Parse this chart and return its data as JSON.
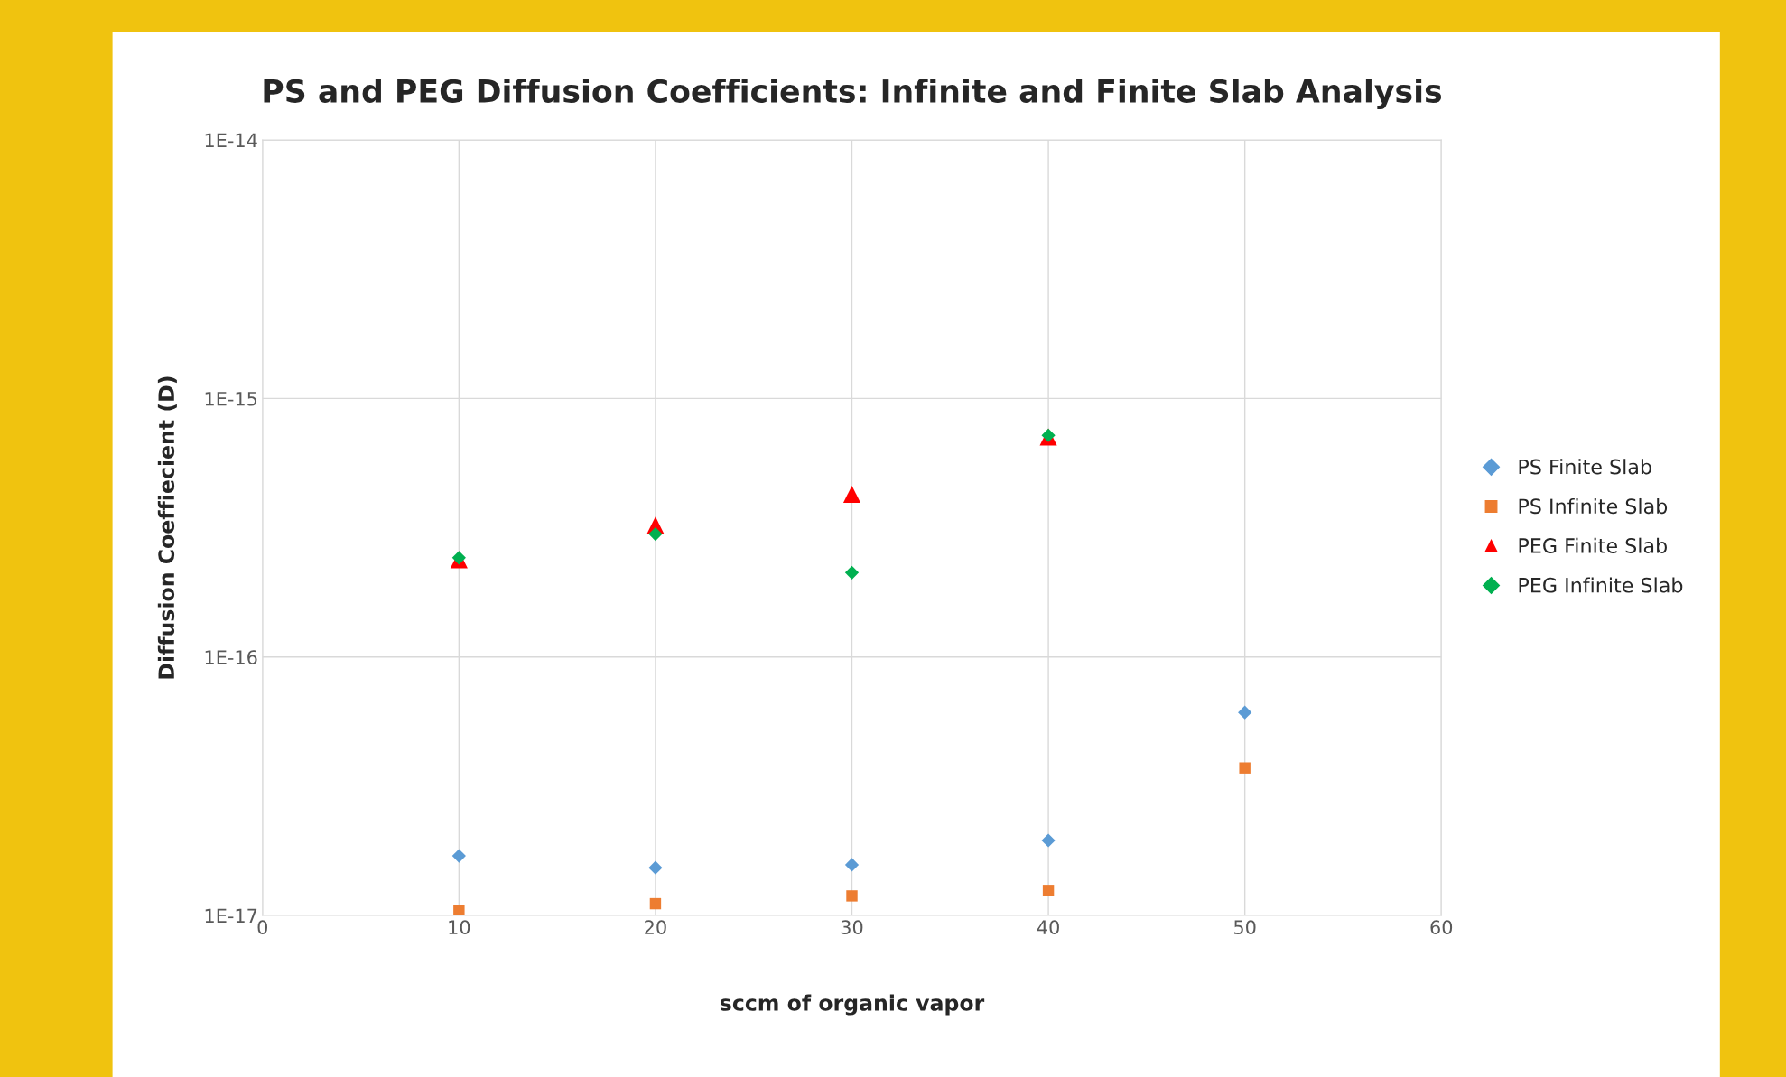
{
  "chart_data": {
    "type": "scatter",
    "title": "PS and PEG Diffusion Coefficients: Infinite and Finite Slab Analysis",
    "xlabel": "sccm of organic vapor",
    "ylabel": "Diffusion Coeffiecient (D)",
    "log": "y",
    "grid": true,
    "legend": "right",
    "xlim": [
      0,
      60
    ],
    "xticks": [
      0,
      10,
      20,
      30,
      40,
      50,
      60
    ],
    "ylim": [
      1e-17,
      1e-14
    ],
    "yticks": [
      {
        "value": 1e-17,
        "label": "1E-17"
      },
      {
        "value": 1e-16,
        "label": "1E-16"
      },
      {
        "value": 1e-15,
        "label": "1E-15"
      },
      {
        "value": 1e-14,
        "label": "1E-14"
      }
    ],
    "series": [
      {
        "name": "PS Finite Slab",
        "color": "#5b9bd5",
        "marker": "diamond",
        "x": [
          10,
          20,
          30,
          40,
          50
        ],
        "values": [
          1.7e-17,
          1.53e-17,
          1.57e-17,
          1.95e-17,
          6.1e-17
        ]
      },
      {
        "name": "PS Infinite Slab",
        "color": "#ed7d31",
        "marker": "square",
        "x": [
          10,
          20,
          30,
          40,
          50
        ],
        "values": [
          1.04e-17,
          1.11e-17,
          1.19e-17,
          1.25e-17,
          3.72e-17
        ]
      },
      {
        "name": "PEG Finite Slab",
        "color": "#ff0000",
        "marker": "triangle",
        "x": [
          10,
          20,
          30,
          40
        ],
        "values": [
          2.38e-16,
          3.23e-16,
          4.26e-16,
          7.1e-16
        ]
      },
      {
        "name": "PEG Infinite Slab",
        "color": "#00b050",
        "marker": "diamond",
        "x": [
          10,
          20,
          30,
          40
        ],
        "values": [
          2.42e-16,
          2.99e-16,
          2.12e-16,
          7.2e-16
        ]
      }
    ]
  }
}
